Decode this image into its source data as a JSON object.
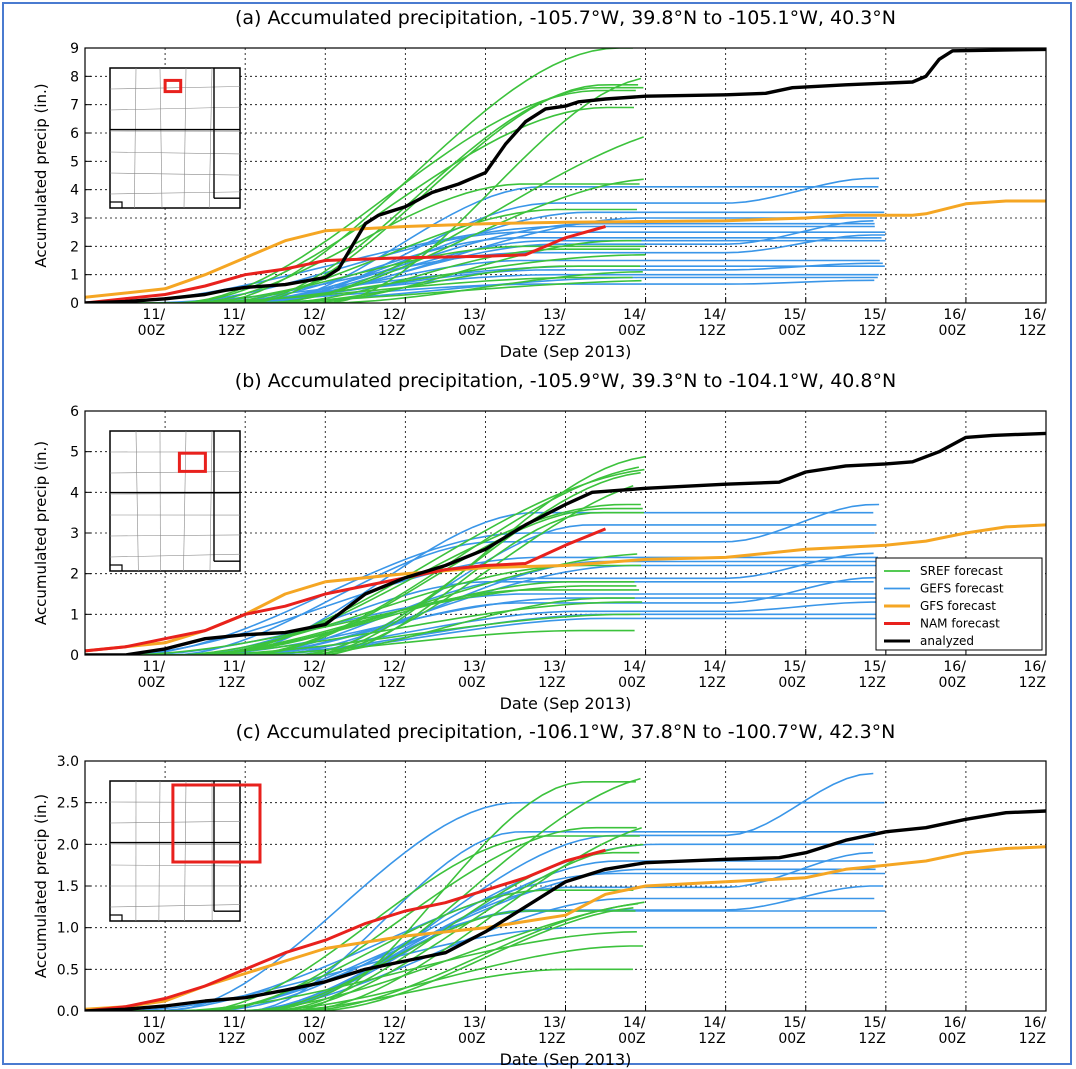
{
  "colors": {
    "sref": "#3cc23c",
    "gefs": "#3a96e8",
    "gfs": "#f5a623",
    "nam": "#e8211d",
    "analyzed": "#000000",
    "frame": "#4a7bd0"
  },
  "chart_data": [
    {
      "type": "line",
      "title": "(a) Accumulated precipitation, -105.7°W, 39.8°N to -105.1°W, 40.3°N",
      "xlabel": "Date (Sep 2013)",
      "ylabel": "Accumulated precip (in.)",
      "xlim": [
        0,
        144
      ],
      "ylim": [
        0,
        9
      ],
      "yticks": [
        "0",
        "1",
        "2",
        "3",
        "4",
        "5",
        "6",
        "7",
        "8",
        "9"
      ],
      "xticks": [
        {
          "x": 12,
          "label": "11/\n00Z"
        },
        {
          "x": 24,
          "label": "11/\n12Z"
        },
        {
          "x": 36,
          "label": "12/\n00Z"
        },
        {
          "x": 48,
          "label": "12/\n12Z"
        },
        {
          "x": 60,
          "label": "13/\n00Z"
        },
        {
          "x": 72,
          "label": "13/\n12Z"
        },
        {
          "x": 84,
          "label": "14/\n00Z"
        },
        {
          "x": 96,
          "label": "14/\n12Z"
        },
        {
          "x": 108,
          "label": "15/\n00Z"
        },
        {
          "x": 120,
          "label": "15/\n12Z"
        },
        {
          "x": 132,
          "label": "16/\n00Z"
        },
        {
          "x": 144,
          "label": "16/\n12Z"
        }
      ],
      "grid": true,
      "inset": {
        "box": [
          0.27,
          0.06,
          0.12,
          0.08
        ]
      },
      "sref_finals": [
        9.0,
        8.0,
        7.7,
        7.6,
        7.5,
        6.9,
        6.4,
        4.4,
        4.2,
        3.3,
        2.2,
        2.0,
        1.9,
        1.7,
        1.3,
        1.1,
        0.9,
        0.8
      ],
      "gefs_finals": [
        4.4,
        4.1,
        3.2,
        3.0,
        2.9,
        2.8,
        2.7,
        2.5,
        2.4,
        2.3,
        2.2,
        1.5,
        1.4,
        1.3,
        1.0,
        0.9,
        0.8
      ],
      "series": [
        {
          "name": "GFS forecast",
          "color": "gfs",
          "points": [
            [
              0,
              0.2
            ],
            [
              12,
              0.5
            ],
            [
              18,
              1.0
            ],
            [
              24,
              1.6
            ],
            [
              30,
              2.2
            ],
            [
              36,
              2.55
            ],
            [
              48,
              2.7
            ],
            [
              60,
              2.8
            ],
            [
              72,
              2.85
            ],
            [
              96,
              2.9
            ],
            [
              108,
              3.0
            ],
            [
              114,
              3.1
            ],
            [
              124,
              3.1
            ],
            [
              126,
              3.15
            ],
            [
              132,
              3.5
            ],
            [
              138,
              3.6
            ],
            [
              144,
              3.6
            ]
          ]
        },
        {
          "name": "NAM forecast",
          "color": "nam",
          "points": [
            [
              0,
              0.0
            ],
            [
              12,
              0.3
            ],
            [
              18,
              0.6
            ],
            [
              24,
              1.0
            ],
            [
              30,
              1.2
            ],
            [
              36,
              1.5
            ],
            [
              48,
              1.6
            ],
            [
              60,
              1.65
            ],
            [
              66,
              1.7
            ],
            [
              72,
              2.3
            ],
            [
              78,
              2.7
            ]
          ]
        },
        {
          "name": "analyzed",
          "color": "analyzed",
          "points": [
            [
              0,
              0.0
            ],
            [
              6,
              0.05
            ],
            [
              12,
              0.15
            ],
            [
              18,
              0.3
            ],
            [
              21,
              0.45
            ],
            [
              24,
              0.55
            ],
            [
              30,
              0.65
            ],
            [
              36,
              0.9
            ],
            [
              38,
              1.2
            ],
            [
              40,
              2.0
            ],
            [
              42,
              2.8
            ],
            [
              44,
              3.1
            ],
            [
              48,
              3.4
            ],
            [
              52,
              3.9
            ],
            [
              56,
              4.2
            ],
            [
              60,
              4.6
            ],
            [
              63,
              5.6
            ],
            [
              66,
              6.4
            ],
            [
              69,
              6.85
            ],
            [
              72,
              6.95
            ],
            [
              74,
              7.1
            ],
            [
              78,
              7.2
            ],
            [
              84,
              7.3
            ],
            [
              96,
              7.35
            ],
            [
              102,
              7.4
            ],
            [
              106,
              7.6
            ],
            [
              114,
              7.7
            ],
            [
              124,
              7.8
            ],
            [
              126,
              8.0
            ],
            [
              128,
              8.6
            ],
            [
              130,
              8.9
            ],
            [
              144,
              8.95
            ]
          ]
        }
      ]
    },
    {
      "type": "line",
      "title": "(b) Accumulated precipitation, -105.9°W, 39.3°N to -104.1°W, 40.8°N",
      "xlabel": "Date (Sep 2013)",
      "ylabel": "Accumulated precip (in.)",
      "xlim": [
        0,
        144
      ],
      "ylim": [
        0,
        6
      ],
      "yticks": [
        "0",
        "1",
        "2",
        "3",
        "4",
        "5",
        "6"
      ],
      "xticks": [
        {
          "x": 12,
          "label": "11/\n00Z"
        },
        {
          "x": 24,
          "label": "11/\n12Z"
        },
        {
          "x": 36,
          "label": "12/\n00Z"
        },
        {
          "x": 48,
          "label": "12/\n12Z"
        },
        {
          "x": 60,
          "label": "13/\n00Z"
        },
        {
          "x": 72,
          "label": "13/\n12Z"
        },
        {
          "x": 84,
          "label": "14/\n00Z"
        },
        {
          "x": 96,
          "label": "14/\n12Z"
        },
        {
          "x": 108,
          "label": "15/\n00Z"
        },
        {
          "x": 120,
          "label": "15/\n12Z"
        },
        {
          "x": 132,
          "label": "16/\n00Z"
        },
        {
          "x": 144,
          "label": "16/\n12Z"
        }
      ],
      "grid": true,
      "inset": {
        "box": [
          0.38,
          0.13,
          0.2,
          0.13
        ]
      },
      "sref_finals": [
        4.9,
        4.7,
        4.6,
        4.5,
        4.4,
        3.7,
        3.6,
        3.5,
        2.5,
        2.2,
        1.8,
        1.7,
        1.6,
        1.4,
        1.3,
        1.0,
        0.6
      ],
      "gefs_finals": [
        3.7,
        3.5,
        3.2,
        3.0,
        2.5,
        2.4,
        2.3,
        2.2,
        1.9,
        1.8,
        1.5,
        1.4,
        1.3,
        1.0,
        0.9
      ],
      "legend": {
        "position": "lower-right",
        "entries": [
          {
            "label": "SREF forecast",
            "color": "sref"
          },
          {
            "label": "GEFS forecast",
            "color": "gefs"
          },
          {
            "label": "GFS forecast",
            "color": "gfs"
          },
          {
            "label": "NAM forecast",
            "color": "nam"
          },
          {
            "label": "analyzed",
            "color": "analyzed"
          }
        ]
      },
      "series": [
        {
          "name": "GFS forecast",
          "color": "gfs",
          "points": [
            [
              0,
              0.1
            ],
            [
              12,
              0.3
            ],
            [
              18,
              0.6
            ],
            [
              24,
              1.0
            ],
            [
              30,
              1.5
            ],
            [
              36,
              1.8
            ],
            [
              48,
              2.0
            ],
            [
              60,
              2.15
            ],
            [
              72,
              2.2
            ],
            [
              84,
              2.35
            ],
            [
              96,
              2.4
            ],
            [
              108,
              2.6
            ],
            [
              120,
              2.7
            ],
            [
              126,
              2.8
            ],
            [
              132,
              3.0
            ],
            [
              138,
              3.15
            ],
            [
              144,
              3.2
            ]
          ]
        },
        {
          "name": "NAM forecast",
          "color": "nam",
          "points": [
            [
              0,
              0.1
            ],
            [
              6,
              0.2
            ],
            [
              12,
              0.4
            ],
            [
              18,
              0.6
            ],
            [
              24,
              1.0
            ],
            [
              30,
              1.2
            ],
            [
              36,
              1.5
            ],
            [
              48,
              1.9
            ],
            [
              54,
              2.1
            ],
            [
              60,
              2.2
            ],
            [
              66,
              2.25
            ],
            [
              72,
              2.7
            ],
            [
              78,
              3.1
            ]
          ]
        },
        {
          "name": "analyzed",
          "color": "analyzed",
          "points": [
            [
              0,
              0.0
            ],
            [
              6,
              0.0
            ],
            [
              12,
              0.15
            ],
            [
              18,
              0.4
            ],
            [
              24,
              0.5
            ],
            [
              30,
              0.55
            ],
            [
              36,
              0.75
            ],
            [
              38,
              1.0
            ],
            [
              42,
              1.5
            ],
            [
              48,
              1.9
            ],
            [
              54,
              2.2
            ],
            [
              60,
              2.6
            ],
            [
              66,
              3.2
            ],
            [
              72,
              3.7
            ],
            [
              76,
              4.0
            ],
            [
              84,
              4.1
            ],
            [
              96,
              4.2
            ],
            [
              104,
              4.25
            ],
            [
              108,
              4.5
            ],
            [
              114,
              4.65
            ],
            [
              120,
              4.7
            ],
            [
              124,
              4.75
            ],
            [
              128,
              5.0
            ],
            [
              132,
              5.35
            ],
            [
              136,
              5.4
            ],
            [
              144,
              5.45
            ]
          ]
        }
      ]
    },
    {
      "type": "line",
      "title": "(c) Accumulated precipitation, -106.1°W, 37.8°N to -100.7°W, 42.3°N",
      "xlabel": "Date (Sep 2013)",
      "ylabel": "Accumulated precip (in.)",
      "xlim": [
        0,
        144
      ],
      "ylim": [
        0,
        3.0
      ],
      "yticks": [
        "0.0",
        "0.5",
        "1.0",
        "1.5",
        "2.0",
        "2.5",
        "3.0"
      ],
      "xticks": [
        {
          "x": 12,
          "label": "11/\n00Z"
        },
        {
          "x": 24,
          "label": "11/\n12Z"
        },
        {
          "x": 36,
          "label": "12/\n00Z"
        },
        {
          "x": 48,
          "label": "12/\n12Z"
        },
        {
          "x": 60,
          "label": "13/\n00Z"
        },
        {
          "x": 72,
          "label": "13/\n12Z"
        },
        {
          "x": 84,
          "label": "14/\n00Z"
        },
        {
          "x": 96,
          "label": "14/\n12Z"
        },
        {
          "x": 108,
          "label": "15/\n00Z"
        },
        {
          "x": 120,
          "label": "15/\n12Z"
        },
        {
          "x": 132,
          "label": "16/\n00Z"
        },
        {
          "x": 144,
          "label": "16/\n12Z"
        }
      ],
      "grid": true,
      "inset": {
        "box": [
          0.33,
          0.0,
          0.67,
          0.55
        ]
      },
      "sref_finals": [
        2.85,
        2.75,
        2.3,
        2.2,
        2.1,
        2.0,
        1.9,
        1.45,
        1.35,
        1.3,
        1.25,
        1.2,
        0.95,
        0.78,
        0.5
      ],
      "gefs_finals": [
        2.85,
        2.5,
        2.15,
        2.0,
        1.9,
        1.8,
        1.7,
        1.65,
        1.5,
        1.35,
        1.2,
        1.0
      ],
      "series": [
        {
          "name": "GFS forecast",
          "color": "gfs",
          "points": [
            [
              0,
              0.02
            ],
            [
              6,
              0.05
            ],
            [
              12,
              0.12
            ],
            [
              18,
              0.3
            ],
            [
              24,
              0.45
            ],
            [
              30,
              0.6
            ],
            [
              36,
              0.75
            ],
            [
              48,
              0.9
            ],
            [
              60,
              1.0
            ],
            [
              72,
              1.15
            ],
            [
              78,
              1.4
            ],
            [
              84,
              1.5
            ],
            [
              96,
              1.55
            ],
            [
              108,
              1.6
            ],
            [
              114,
              1.7
            ],
            [
              120,
              1.75
            ],
            [
              126,
              1.8
            ],
            [
              132,
              1.9
            ],
            [
              138,
              1.95
            ],
            [
              144,
              1.97
            ]
          ]
        },
        {
          "name": "NAM forecast",
          "color": "nam",
          "points": [
            [
              0,
              0.0
            ],
            [
              6,
              0.05
            ],
            [
              12,
              0.15
            ],
            [
              18,
              0.3
            ],
            [
              24,
              0.5
            ],
            [
              30,
              0.7
            ],
            [
              36,
              0.85
            ],
            [
              42,
              1.05
            ],
            [
              48,
              1.2
            ],
            [
              54,
              1.3
            ],
            [
              60,
              1.45
            ],
            [
              66,
              1.6
            ],
            [
              72,
              1.8
            ],
            [
              78,
              1.93
            ]
          ]
        },
        {
          "name": "analyzed",
          "color": "analyzed",
          "points": [
            [
              0,
              0.0
            ],
            [
              6,
              0.02
            ],
            [
              12,
              0.06
            ],
            [
              18,
              0.12
            ],
            [
              24,
              0.16
            ],
            [
              30,
              0.25
            ],
            [
              36,
              0.35
            ],
            [
              42,
              0.5
            ],
            [
              48,
              0.6
            ],
            [
              54,
              0.7
            ],
            [
              60,
              0.95
            ],
            [
              66,
              1.25
            ],
            [
              72,
              1.55
            ],
            [
              78,
              1.7
            ],
            [
              84,
              1.78
            ],
            [
              96,
              1.82
            ],
            [
              104,
              1.84
            ],
            [
              108,
              1.9
            ],
            [
              114,
              2.05
            ],
            [
              120,
              2.15
            ],
            [
              126,
              2.2
            ],
            [
              132,
              2.3
            ],
            [
              138,
              2.38
            ],
            [
              144,
              2.4
            ]
          ]
        }
      ]
    }
  ]
}
